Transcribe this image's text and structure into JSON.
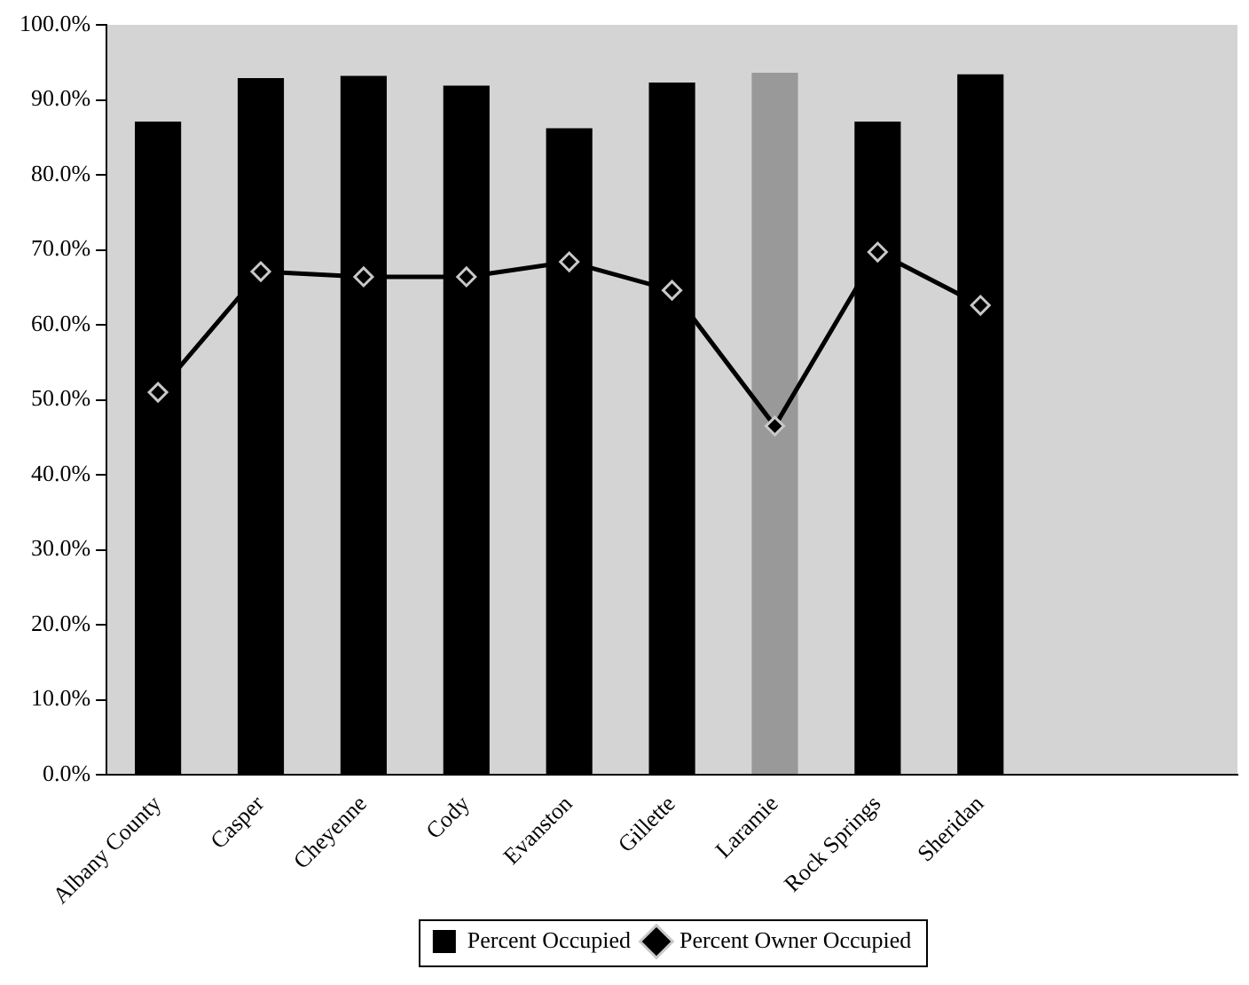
{
  "chart_data": {
    "type": "bar",
    "categories": [
      "Albany County",
      "Casper",
      "Cheyenne",
      "Cody",
      "Evanston",
      "Gillette",
      "Laramie",
      "Rock Springs",
      "Sheridan",
      null,
      null
    ],
    "series": [
      {
        "name": "Percent Occupied",
        "colors": [
          "#000000",
          "#000000",
          "#000000",
          "#000000",
          "#000000",
          "#000000",
          "#999999",
          "#000000",
          "#000000",
          "#000000",
          "#000000"
        ],
        "values": [
          87.1,
          92.9,
          93.2,
          91.9,
          86.2,
          92.3,
          93.6,
          87.1,
          93.4,
          null,
          null
        ]
      },
      {
        "name": "Percent Owner Occupied",
        "type": "line",
        "color": "#000000",
        "marker": "diamond",
        "values": [
          51.0,
          67.1,
          66.4,
          66.4,
          68.4,
          64.6,
          46.5,
          69.7,
          62.6,
          null,
          null
        ]
      }
    ],
    "ylim": [
      0,
      100
    ],
    "yticks": [
      {
        "value": 0,
        "label": "0.0%"
      },
      {
        "value": 10,
        "label": "10.0%"
      },
      {
        "value": 20,
        "label": "20.0%"
      },
      {
        "value": 30,
        "label": "30.0%"
      },
      {
        "value": 40,
        "label": "40.0%"
      },
      {
        "value": 50,
        "label": "50.0%"
      },
      {
        "value": 60,
        "label": "60.0%"
      },
      {
        "value": 70,
        "label": "70.0%"
      },
      {
        "value": 80,
        "label": "80.0%"
      },
      {
        "value": 90,
        "label": "90.0%"
      },
      {
        "value": 100,
        "label": "100.0%"
      }
    ],
    "grid": false,
    "legend": "bottom"
  }
}
